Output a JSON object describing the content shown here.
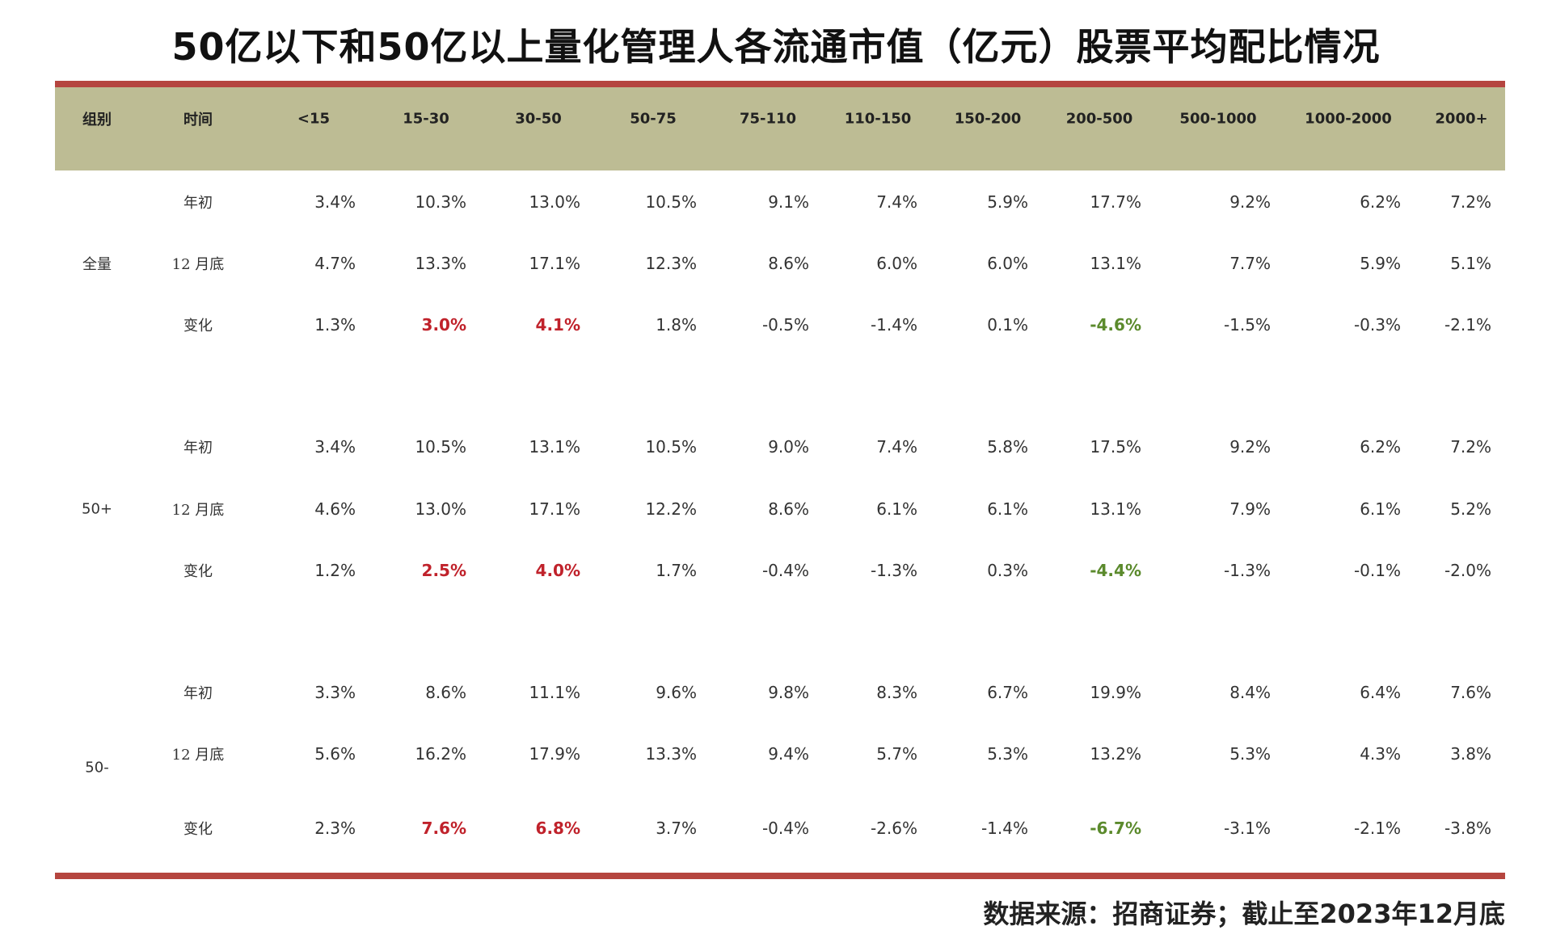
{
  "title": "50亿以下和50亿以上量化管理人各流通市值（亿元）股票平均配比情况",
  "headers": [
    "组别",
    "时间",
    "<15",
    "15-30",
    "30-50",
    "50-75",
    "75-110",
    "110-150",
    "150-200",
    "200-500",
    "500-1000",
    "1000-2000",
    "2000+"
  ],
  "groups": [
    {
      "name": "全量",
      "rows": [
        {
          "label": "年初",
          "values": [
            "3.4%",
            "10.3%",
            "13.0%",
            "10.5%",
            "9.1%",
            "7.4%",
            "5.9%",
            "17.7%",
            "9.2%",
            "6.2%",
            "7.2%"
          ]
        },
        {
          "label": "12 月底",
          "values": [
            "4.7%",
            "13.3%",
            "17.1%",
            "12.3%",
            "8.6%",
            "6.0%",
            "6.0%",
            "13.1%",
            "7.7%",
            "5.9%",
            "5.1%"
          ]
        },
        {
          "label": "变化",
          "values": [
            "1.3%",
            "3.0%",
            "4.1%",
            "1.8%",
            "-0.5%",
            "-1.4%",
            "0.1%",
            "-4.6%",
            "-1.5%",
            "-0.3%",
            "-2.1%"
          ]
        }
      ]
    },
    {
      "name": "50+",
      "rows": [
        {
          "label": "年初",
          "values": [
            "3.4%",
            "10.5%",
            "13.1%",
            "10.5%",
            "9.0%",
            "7.4%",
            "5.8%",
            "17.5%",
            "9.2%",
            "6.2%",
            "7.2%"
          ]
        },
        {
          "label": "12 月底",
          "values": [
            "4.6%",
            "13.0%",
            "17.1%",
            "12.2%",
            "8.6%",
            "6.1%",
            "6.1%",
            "13.1%",
            "7.9%",
            "6.1%",
            "5.2%"
          ]
        },
        {
          "label": "变化",
          "values": [
            "1.2%",
            "2.5%",
            "4.0%",
            "1.7%",
            "-0.4%",
            "-1.3%",
            "0.3%",
            "-4.4%",
            "-1.3%",
            "-0.1%",
            "-2.0%"
          ]
        }
      ]
    },
    {
      "name": "50-",
      "rows": [
        {
          "label": "年初",
          "values": [
            "3.3%",
            "8.6%",
            "11.1%",
            "9.6%",
            "9.8%",
            "8.3%",
            "6.7%",
            "19.9%",
            "8.4%",
            "6.4%",
            "7.6%"
          ]
        },
        {
          "label": "12 月底",
          "values": [
            "5.6%",
            "16.2%",
            "17.9%",
            "13.3%",
            "9.4%",
            "5.7%",
            "5.3%",
            "13.2%",
            "5.3%",
            "4.3%",
            "3.8%"
          ]
        },
        {
          "label": "变化",
          "values": [
            "2.3%",
            "7.6%",
            "6.8%",
            "3.7%",
            "-0.4%",
            "-2.6%",
            "-1.4%",
            "-6.7%",
            "-3.1%",
            "-2.1%",
            "-3.8%"
          ]
        }
      ]
    }
  ],
  "highlight": {
    "positive_color": "#c0222b",
    "negative_color": "#5b8a2c",
    "positive_columns": [
      "15-30",
      "30-50"
    ],
    "negative_columns": [
      "200-500"
    ]
  },
  "source": "数据来源：招商证券；截止至2023年12月底"
}
